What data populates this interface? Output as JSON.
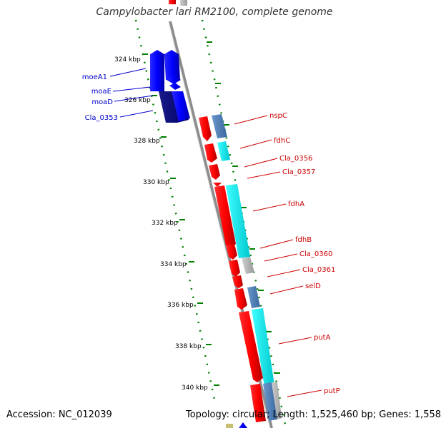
{
  "header": {
    "title": "Campylobacter lari RM2100, complete genome"
  },
  "footer": {
    "accession": "Accession: NC_012039",
    "topology": "Topology: circular; Length: 1,525,460 bp; Genes: 1,558"
  },
  "ticks": [
    "324 kbp",
    "326 kbp",
    "328 kbp",
    "330 kbp",
    "332 kbp",
    "334 kbp",
    "336 kbp",
    "338 kbp",
    "340 kbp"
  ],
  "genes_reverse": [
    {
      "label": "moeA1",
      "color": "#0000cc"
    },
    {
      "label": "moaE",
      "color": "#0000cc"
    },
    {
      "label": "moaD",
      "color": "#0000cc"
    },
    {
      "label": "Cla_0353",
      "color": "#0000cc"
    }
  ],
  "genes_forward": [
    {
      "label": "nspC",
      "color": "#cc0000"
    },
    {
      "label": "fdhC",
      "color": "#cc0000"
    },
    {
      "label": "Cla_0356",
      "color": "#cc0000"
    },
    {
      "label": "Cla_0357",
      "color": "#cc0000"
    },
    {
      "label": "fdhA",
      "color": "#cc0000"
    },
    {
      "label": "fdhB",
      "color": "#cc0000"
    },
    {
      "label": "Cla_0360",
      "color": "#cc0000"
    },
    {
      "label": "Cla_0361",
      "color": "#cc0000"
    },
    {
      "label": "selD",
      "color": "#cc0000"
    },
    {
      "label": "putA",
      "color": "#cc0000"
    },
    {
      "label": "putP",
      "color": "#cc0000"
    }
  ],
  "colors": {
    "backbone": "#8c8c8c",
    "forward_cds": "#ff0000",
    "reverse_cds": "#0000ff",
    "cog_cyan": "#00e5ee",
    "cog_steel": "#4f81bd",
    "cog_gray": "#b3b3b3",
    "tick_green": "#008000"
  }
}
